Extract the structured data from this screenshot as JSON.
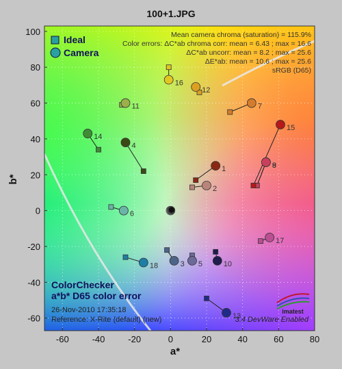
{
  "window_title": "100+1.JPG",
  "chart_data": {
    "type": "scatter",
    "xlabel": "a*",
    "ylabel": "b*",
    "xlim": [
      -70,
      80
    ],
    "ylim": [
      -67,
      103
    ],
    "xticks": [
      -60,
      -40,
      -20,
      0,
      20,
      40,
      60,
      80
    ],
    "yticks": [
      -60,
      -40,
      -20,
      0,
      20,
      40,
      60,
      80,
      100
    ],
    "grid": "dotted",
    "legend_position": "top-left",
    "legend": {
      "ideal": "Ideal",
      "camera": "Camera"
    },
    "stats": [
      "Mean camera chroma (saturation) = 115.9%",
      "Color errors:  ΔC*ab chroma corr:  mean = 6.43 ;  max = 16.6",
      "ΔC*ab uncorr:  mean = 8.2 ;  max = 25.6",
      "ΔE*ab:  mean = 10.6 ;  max = 25.6",
      "sRGB (D65)"
    ],
    "info_title": "ColorChecker",
    "info_subtitle": "a*b* D65 color error",
    "timestamp": "26-Nov-2010 17:35:18",
    "reference": "Reference: X-Rite (default) (new)",
    "version": "3.4  DevWare Enabled",
    "logo_text": "imatest",
    "patches": [
      {
        "id": "1",
        "ideal": [
          14,
          17
        ],
        "camera": [
          25,
          25
        ],
        "color": "#8a2814"
      },
      {
        "id": "2",
        "ideal": [
          12,
          13
        ],
        "camera": [
          20,
          14
        ],
        "color": "#b9857a"
      },
      {
        "id": "3",
        "ideal": [
          -2,
          -22
        ],
        "camera": [
          2,
          -28
        ],
        "color": "#4d6489"
      },
      {
        "id": "4",
        "ideal": [
          -15,
          22
        ],
        "camera": [
          -25,
          38
        ],
        "color": "#3b4a15"
      },
      {
        "id": "5",
        "ideal": [
          12,
          -25
        ],
        "camera": [
          12,
          -28
        ],
        "color": "#6c6a99"
      },
      {
        "id": "6",
        "ideal": [
          -33,
          2
        ],
        "camera": [
          -26,
          0
        ],
        "color": "#6bb4a8"
      },
      {
        "id": "7",
        "ideal": [
          33,
          55
        ],
        "camera": [
          45,
          60
        ],
        "color": "#d57c2c"
      },
      {
        "id": "8",
        "ideal": [
          48,
          14
        ],
        "camera": [
          53,
          27
        ],
        "color": "#c9405e"
      },
      {
        "id": "9",
        "ideal": [
          48,
          14
        ],
        "camera": [
          53,
          27
        ],
        "color": "#c9405e"
      },
      {
        "id": "10",
        "ideal": [
          25,
          -23
        ],
        "camera": [
          26,
          -28
        ],
        "color": "#201c4c"
      },
      {
        "id": "11",
        "ideal": [
          -27,
          59
        ],
        "camera": [
          -25,
          60
        ],
        "color": "#9bb04a"
      },
      {
        "id": "12",
        "ideal": [
          16,
          66
        ],
        "camera": [
          14,
          69
        ],
        "color": "#dba021"
      },
      {
        "id": "13",
        "ideal": [
          20,
          -49
        ],
        "camera": [
          31,
          -57
        ],
        "color": "#1f2b87"
      },
      {
        "id": "14",
        "ideal": [
          -40,
          34
        ],
        "camera": [
          -46,
          43
        ],
        "color": "#3f8c35"
      },
      {
        "id": "15",
        "ideal": [
          46,
          14
        ],
        "camera": [
          61,
          48
        ],
        "color": "#b61919"
      },
      {
        "id": "16",
        "ideal": [
          -1,
          80
        ],
        "camera": [
          -1,
          73
        ],
        "color": "#e2c621"
      },
      {
        "id": "17",
        "ideal": [
          50,
          -17
        ],
        "camera": [
          55,
          -15
        ],
        "color": "#ba4f92"
      },
      {
        "id": "18",
        "ideal": [
          -25,
          -26
        ],
        "camera": [
          -15,
          -29
        ],
        "color": "#1e7ea5"
      }
    ],
    "neutral_center": [
      0,
      0
    ]
  }
}
